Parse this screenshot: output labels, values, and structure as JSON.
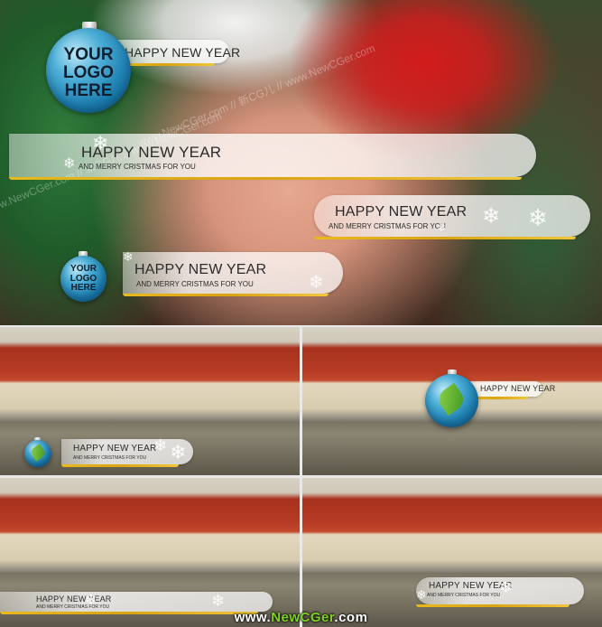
{
  "top": {
    "logo": {
      "line1": "YOUR",
      "line2": "LOGO",
      "line3": "HERE"
    },
    "small_logo": {
      "line1": "YOUR",
      "line2": "LOGO",
      "line3": "HERE"
    },
    "bar1": {
      "title": "HAPPY NEW YEAR"
    },
    "bar2": {
      "title": "HAPPY NEW YEAR",
      "subtitle": "AND MERRY CRISTMAS FOR YOU"
    },
    "bar3": {
      "title": "HAPPY NEW YEAR",
      "subtitle": "AND MERRY CRISTMAS FOR YOU"
    },
    "bar4": {
      "title": "HAPPY NEW YEAR",
      "subtitle": "AND MERRY CRISTMAS FOR YOU"
    },
    "watermark": "www.NewCGer.com // 新CG儿 // www.NewCGer.com"
  },
  "panels": [
    {
      "title": "HAPPY NEW YEAR",
      "subtitle": "AND MERRY CRISTMAS FOR YOU"
    },
    {
      "title": "HAPPY NEW YEAR"
    },
    {
      "title": "HAPPY NEW YEAR",
      "subtitle": "AND MERRY CRISTMAS FOR YOU"
    },
    {
      "title": "HAPPY NEW YEAR",
      "subtitle": "AND MERRY CRISTMAS FOR YOU"
    }
  ],
  "footer": {
    "prefix": "www.",
    "brand": "NewCGer",
    "suffix": ".com"
  },
  "icons": [
    "christmas-ornament-icon",
    "leaf-icon",
    "snowflake-icon"
  ],
  "colors": {
    "accent_gold": "#e8b91c",
    "ornament_blue": "#1c7eaf",
    "leaf_green": "#7ed321"
  }
}
